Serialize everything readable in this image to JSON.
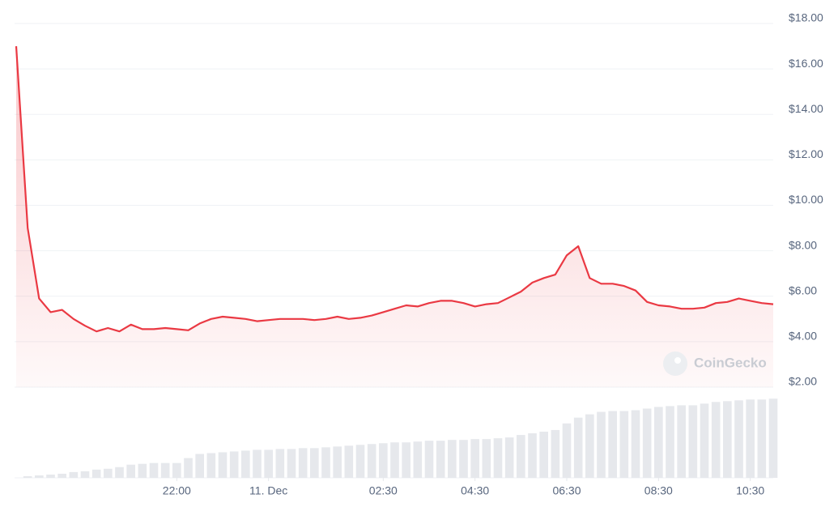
{
  "chart_data": {
    "type": "line",
    "watermark": "CoinGecko",
    "series": [
      {
        "color": "#ea3943",
        "values": [
          17,
          9.0,
          5.9,
          5.3,
          5.4,
          5.0,
          4.7,
          4.45,
          4.6,
          4.45,
          4.75,
          4.55,
          4.55,
          4.6,
          4.55,
          4.5,
          4.8,
          5.0,
          5.1,
          5.05,
          5.0,
          4.9,
          4.95,
          5.0,
          5.0,
          5.0,
          4.95,
          5.0,
          5.1,
          5.0,
          5.05,
          5.15,
          5.3,
          5.45,
          5.6,
          5.55,
          5.7,
          5.8,
          5.8,
          5.7,
          5.55,
          5.65,
          5.7,
          5.95,
          6.2,
          6.6,
          6.8,
          6.95,
          7.8,
          8.2,
          6.8,
          6.55,
          6.55,
          6.45,
          6.25,
          5.75,
          5.6,
          5.55,
          5.45,
          5.45,
          5.5,
          5.7,
          5.75,
          5.9,
          5.8,
          5.7,
          5.65
        ]
      },
      {
        "color": "#e6e8ec",
        "axis": "y2",
        "values": [
          0,
          2,
          3,
          4,
          5,
          7,
          8,
          10,
          11,
          13,
          16,
          17,
          18,
          18,
          18,
          24,
          29,
          30,
          31,
          32,
          33,
          34,
          34,
          35,
          35,
          36,
          36,
          37,
          38,
          39,
          40,
          41,
          42,
          43,
          43,
          44,
          45,
          45,
          46,
          46,
          47,
          47,
          48,
          49,
          52,
          54,
          56,
          58,
          66,
          73,
          77,
          80,
          81,
          81,
          82,
          84,
          86,
          87,
          88,
          88,
          90,
          92,
          93,
          94,
          95,
          95,
          96
        ]
      }
    ],
    "xlim": [
      0,
      66
    ],
    "xticks": [
      {
        "value": 14,
        "label": "22:00"
      },
      {
        "value": 22,
        "label": "11. Dec"
      },
      {
        "value": 32,
        "label": "02:30"
      },
      {
        "value": 40,
        "label": "04:30"
      },
      {
        "value": 48,
        "label": "06:30"
      },
      {
        "value": 56,
        "label": "08:30"
      },
      {
        "value": 64,
        "label": "10:30"
      }
    ],
    "ylim": [
      2,
      18
    ],
    "yticks": [
      {
        "value": 2,
        "label": "$2.00"
      },
      {
        "value": 4,
        "label": "$4.00"
      },
      {
        "value": 6,
        "label": "$6.00"
      },
      {
        "value": 8,
        "label": "$8.00"
      },
      {
        "value": 10,
        "label": "$10.00"
      },
      {
        "value": 12,
        "label": "$12.00"
      },
      {
        "value": 14,
        "label": "$14.00"
      },
      {
        "value": 16,
        "label": "$16.00"
      },
      {
        "value": 18,
        "label": "$18.00"
      }
    ],
    "y2lim": [
      0,
      110
    ],
    "grid": true
  }
}
